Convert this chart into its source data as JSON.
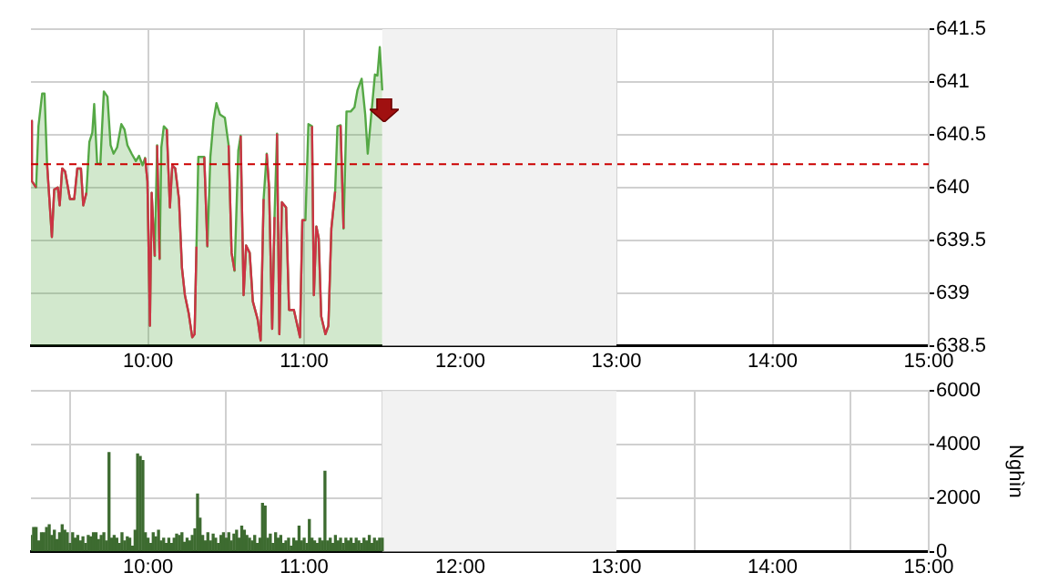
{
  "chart_data": [
    {
      "type": "area",
      "xlim": [
        9.25,
        15
      ],
      "xticks": [
        {
          "value": 10,
          "label": "10:00"
        },
        {
          "value": 11,
          "label": "11:00"
        },
        {
          "value": 12,
          "label": "12:00"
        },
        {
          "value": 13,
          "label": "13:00"
        },
        {
          "value": 14,
          "label": "14:00"
        },
        {
          "value": 15,
          "label": "15:00"
        }
      ],
      "ylim": [
        638.5,
        641.5
      ],
      "yticks": [
        638.5,
        639,
        639.5,
        640,
        640.5,
        641,
        641.5
      ],
      "grid": true,
      "legend": false,
      "marker": "none",
      "line_style": "solid",
      "series": [
        {
          "color": "#55a845",
          "x": [
            9.25,
            9.256,
            9.283,
            9.298,
            9.322,
            9.337,
            9.353,
            9.384,
            9.399,
            9.422,
            9.434,
            9.45,
            9.469,
            9.5,
            9.527,
            9.547,
            9.57,
            9.585,
            9.605,
            9.624,
            9.643,
            9.655,
            9.674,
            9.694,
            9.717,
            9.74,
            9.76,
            9.779,
            9.802,
            9.829,
            9.849,
            9.868,
            9.895,
            9.922,
            9.942,
            9.965,
            9.981,
            9.996,
            10.012,
            10.023,
            10.043,
            10.058,
            10.074,
            10.085,
            10.101,
            10.12,
            10.14,
            10.155,
            10.174,
            10.198,
            10.217,
            10.236,
            10.26,
            10.283,
            10.298,
            10.31,
            10.322,
            10.36,
            10.38,
            10.399,
            10.419,
            10.438,
            10.461,
            10.492,
            10.516,
            10.535,
            10.554,
            10.578,
            10.593,
            10.612,
            10.628,
            10.651,
            10.671,
            10.702,
            10.721,
            10.74,
            10.76,
            10.775,
            10.795,
            10.81,
            10.826,
            10.841,
            10.857,
            10.884,
            10.903,
            10.934,
            10.961,
            10.973,
            10.988,
            11.008,
            11.027,
            11.05,
            11.062,
            11.078,
            11.093,
            11.109,
            11.136,
            11.155,
            11.174,
            11.198,
            11.213,
            11.233,
            11.252,
            11.271,
            11.298,
            11.322,
            11.341,
            11.368,
            11.391,
            11.407,
            11.426,
            11.453,
            11.469,
            11.484,
            11.5
          ],
          "values": [
            640.63,
            640.06,
            640.0,
            640.58,
            640.89,
            640.89,
            640.23,
            639.53,
            639.98,
            640.0,
            639.83,
            640.18,
            640.15,
            639.89,
            639.89,
            640.18,
            640.18,
            639.83,
            639.95,
            640.43,
            640.52,
            640.79,
            640.23,
            640.22,
            640.91,
            640.86,
            640.4,
            640.32,
            640.38,
            640.6,
            640.55,
            640.4,
            640.32,
            640.25,
            640.3,
            640.21,
            640.28,
            640.06,
            638.69,
            639.95,
            639.35,
            640.4,
            639.32,
            640.38,
            640.58,
            640.55,
            639.81,
            640.21,
            640.18,
            639.89,
            639.24,
            638.98,
            638.81,
            638.58,
            638.61,
            639.44,
            640.29,
            640.29,
            639.44,
            640.29,
            640.63,
            640.8,
            640.69,
            640.66,
            640.4,
            639.38,
            639.21,
            640.35,
            640.49,
            638.98,
            639.45,
            639.38,
            638.92,
            638.75,
            638.55,
            639.89,
            640.32,
            640.0,
            638.66,
            639.72,
            640.51,
            638.61,
            639.86,
            639.81,
            638.84,
            638.84,
            638.66,
            638.58,
            639.69,
            639.69,
            640.6,
            640.58,
            638.98,
            639.63,
            639.52,
            638.78,
            638.61,
            638.69,
            639.61,
            639.96,
            640.58,
            640.59,
            639.61,
            640.72,
            640.72,
            640.76,
            640.92,
            641.03,
            640.69,
            640.32,
            640.63,
            641.07,
            641.06,
            641.33,
            640.92
          ]
        },
        {
          "type": "line",
          "color": "#cc3344",
          "x": [
            9.25,
            9.256,
            9.283,
            null,
            9.353,
            9.384,
            9.399,
            9.422,
            9.434,
            9.45,
            9.469,
            9.5,
            9.527,
            9.547,
            9.57,
            9.585,
            9.605,
            null,
            9.981,
            9.996,
            10.012,
            10.023,
            10.043,
            null,
            10.058,
            10.074,
            null,
            10.12,
            10.14,
            10.155,
            10.174,
            10.198,
            10.217,
            10.236,
            10.26,
            10.283,
            10.298,
            10.31,
            null,
            10.36,
            10.38,
            null,
            10.516,
            10.535,
            10.554,
            null,
            10.593,
            10.612,
            10.628,
            10.651,
            10.671,
            10.702,
            10.721,
            10.74,
            null,
            10.76,
            10.775,
            10.795,
            10.81,
            null,
            10.826,
            10.841,
            10.857,
            10.884,
            10.903,
            10.934,
            10.961,
            10.973,
            10.988,
            11.008,
            null,
            11.05,
            11.062,
            11.078,
            11.093,
            11.109,
            11.136,
            11.155,
            11.174,
            11.198,
            null,
            11.233,
            11.252
          ],
          "values": [
            640.63,
            640.06,
            640.0,
            null,
            640.23,
            639.53,
            639.98,
            640.0,
            639.83,
            640.18,
            640.15,
            639.89,
            639.89,
            640.18,
            640.18,
            639.83,
            639.95,
            null,
            640.28,
            640.06,
            638.69,
            639.95,
            639.35,
            null,
            640.4,
            639.32,
            null,
            640.55,
            639.81,
            640.21,
            640.18,
            639.89,
            639.24,
            638.98,
            638.81,
            638.58,
            638.61,
            639.44,
            null,
            640.29,
            639.44,
            null,
            640.4,
            639.38,
            639.21,
            null,
            640.49,
            638.98,
            639.45,
            639.38,
            638.92,
            638.75,
            638.55,
            639.89,
            null,
            640.32,
            640.0,
            638.66,
            639.72,
            null,
            640.51,
            638.61,
            639.86,
            639.81,
            638.84,
            638.84,
            638.66,
            638.58,
            639.69,
            639.69,
            null,
            640.58,
            638.98,
            639.63,
            639.52,
            638.78,
            638.61,
            638.69,
            639.61,
            639.96,
            null,
            640.59,
            639.61
          ]
        }
      ],
      "ref_lines": [
        {
          "axis": "y",
          "value": 640.22,
          "color": "#cc0000",
          "line_style": "dashed"
        }
      ],
      "bands": [
        {
          "axis": "x",
          "from": 11.5,
          "to": 13,
          "color": "#f2f2f2"
        }
      ]
    },
    {
      "type": "bar",
      "ylabel": "Nghìn",
      "xlim": [
        9.25,
        15
      ],
      "xticks": [
        {
          "value": 10,
          "label": "10:00"
        },
        {
          "value": 11,
          "label": "11:00"
        },
        {
          "value": 12,
          "label": "12:00"
        },
        {
          "value": 13,
          "label": "13:00"
        },
        {
          "value": 14,
          "label": "14:00"
        },
        {
          "value": 15,
          "label": "15:00"
        }
      ],
      "ylim": [
        0,
        6000
      ],
      "yticks": [
        0,
        2000,
        4000,
        6000
      ],
      "grid": true,
      "legend": false,
      "x": [
        9.25,
        9.267,
        9.283,
        9.3,
        9.317,
        9.333,
        9.35,
        9.367,
        9.383,
        9.4,
        9.417,
        9.433,
        9.45,
        9.467,
        9.483,
        9.5,
        9.517,
        9.533,
        9.55,
        9.567,
        9.583,
        9.6,
        9.617,
        9.633,
        9.65,
        9.667,
        9.683,
        9.7,
        9.717,
        9.733,
        9.75,
        9.767,
        9.783,
        9.8,
        9.817,
        9.833,
        9.85,
        9.867,
        9.883,
        9.9,
        9.917,
        9.933,
        9.95,
        9.967,
        9.983,
        10,
        10.017,
        10.033,
        10.05,
        10.067,
        10.083,
        10.1,
        10.117,
        10.133,
        10.15,
        10.167,
        10.183,
        10.2,
        10.217,
        10.233,
        10.25,
        10.267,
        10.283,
        10.3,
        10.317,
        10.333,
        10.35,
        10.367,
        10.383,
        10.4,
        10.417,
        10.433,
        10.45,
        10.467,
        10.483,
        10.5,
        10.517,
        10.533,
        10.55,
        10.567,
        10.583,
        10.6,
        10.617,
        10.633,
        10.65,
        10.667,
        10.683,
        10.7,
        10.717,
        10.733,
        10.75,
        10.767,
        10.783,
        10.8,
        10.817,
        10.833,
        10.85,
        10.867,
        10.883,
        10.9,
        10.917,
        10.933,
        10.95,
        10.967,
        10.983,
        11,
        11.017,
        11.033,
        11.05,
        11.067,
        11.083,
        11.1,
        11.117,
        11.133,
        11.15,
        11.167,
        11.183,
        11.2,
        11.217,
        11.233,
        11.25,
        11.267,
        11.283,
        11.3,
        11.317,
        11.333,
        11.35,
        11.367,
        11.383,
        11.4,
        11.417,
        11.433,
        11.45,
        11.467,
        11.483,
        11.5
      ],
      "series": [
        {
          "color": "#3d6b30",
          "values": [
            600,
            900,
            900,
            400,
            700,
            700,
            900,
            1000,
            600,
            800,
            450,
            700,
            1000,
            800,
            700,
            300,
            700,
            500,
            600,
            400,
            550,
            300,
            600,
            550,
            700,
            700,
            450,
            600,
            700,
            400,
            3700,
            500,
            600,
            500,
            300,
            700,
            400,
            550,
            500,
            200,
            800,
            3650,
            3550,
            3400,
            700,
            500,
            300,
            700,
            550,
            800,
            400,
            500,
            300,
            500,
            300,
            500,
            650,
            600,
            700,
            350,
            500,
            400,
            600,
            850,
            2150,
            1250,
            600,
            400,
            700,
            400,
            650,
            500,
            300,
            600,
            700,
            500,
            700,
            400,
            650,
            800,
            500,
            950,
            800,
            600,
            500,
            400,
            600,
            300,
            500,
            1800,
            1700,
            500,
            650,
            300,
            700,
            500,
            600,
            300,
            400,
            500,
            200,
            500,
            400,
            950,
            400,
            500,
            300,
            1200,
            500,
            400,
            300,
            500,
            400,
            3000,
            400,
            500,
            300,
            600,
            400,
            500,
            300,
            500,
            400,
            500,
            300,
            500,
            400,
            300,
            500,
            400,
            600,
            300,
            500,
            400,
            500,
            500
          ]
        }
      ],
      "bands": [
        {
          "axis": "x",
          "from": 11.5,
          "to": 13,
          "color": "#f2f2f2"
        }
      ]
    }
  ]
}
